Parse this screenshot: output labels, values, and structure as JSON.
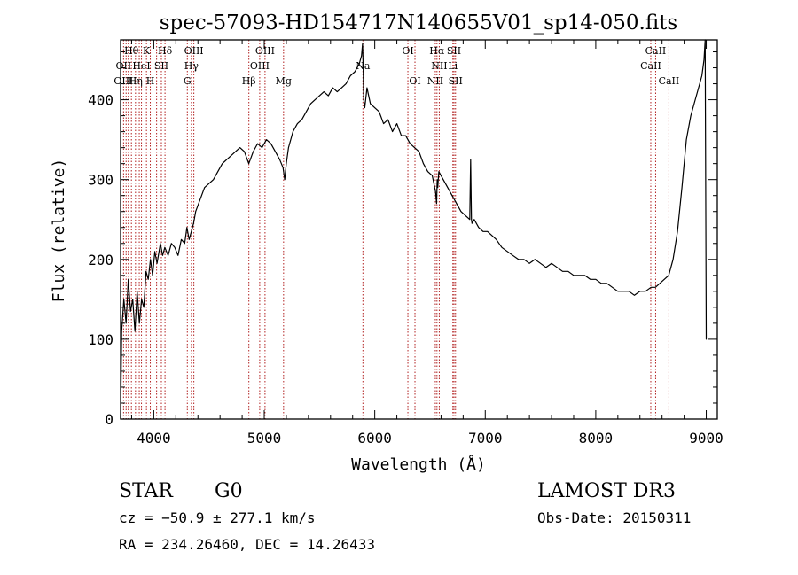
{
  "chart_data": {
    "type": "line",
    "title": "spec-57093-HD154717N140655V01_sp14-050.fits",
    "xlabel": "Wavelength (Å)",
    "ylabel": "Flux (relative)",
    "xlim": [
      3700,
      9100
    ],
    "ylim": [
      0,
      475
    ],
    "x_ticks": [
      4000,
      5000,
      6000,
      7000,
      8000,
      9000
    ],
    "y_ticks": [
      0,
      100,
      200,
      300,
      400
    ],
    "grid": false,
    "legend": "none",
    "series": [
      {
        "color": "#000000",
        "x": [
          3700,
          3710,
          3730,
          3750,
          3770,
          3790,
          3810,
          3830,
          3850,
          3870,
          3890,
          3910,
          3930,
          3950,
          3970,
          3990,
          4010,
          4030,
          4060,
          4080,
          4100,
          4130,
          4160,
          4190,
          4220,
          4250,
          4280,
          4300,
          4320,
          4340,
          4360,
          4380,
          4420,
          4460,
          4500,
          4540,
          4580,
          4620,
          4660,
          4700,
          4740,
          4780,
          4820,
          4860,
          4900,
          4940,
          4980,
          5020,
          5060,
          5100,
          5140,
          5170,
          5185,
          5200,
          5220,
          5260,
          5300,
          5340,
          5380,
          5420,
          5460,
          5500,
          5540,
          5580,
          5620,
          5660,
          5700,
          5740,
          5780,
          5820,
          5860,
          5880,
          5890,
          5895,
          5900,
          5910,
          5930,
          5960,
          6000,
          6040,
          6080,
          6120,
          6160,
          6200,
          6240,
          6280,
          6320,
          6360,
          6400,
          6440,
          6480,
          6520,
          6550,
          6560,
          6565,
          6570,
          6580,
          6620,
          6660,
          6700,
          6740,
          6780,
          6820,
          6860,
          6868,
          6875,
          6880,
          6900,
          6940,
          6980,
          7020,
          7060,
          7100,
          7150,
          7200,
          7250,
          7300,
          7350,
          7400,
          7450,
          7500,
          7550,
          7600,
          7650,
          7700,
          7750,
          7800,
          7850,
          7900,
          7950,
          8000,
          8050,
          8100,
          8150,
          8200,
          8250,
          8300,
          8350,
          8400,
          8450,
          8500,
          8540,
          8580,
          8620,
          8660,
          8700,
          8740,
          8780,
          8820,
          8860,
          8900,
          8940,
          8960,
          8980,
          8990,
          9000,
          9003
        ],
        "values": [
          0,
          110,
          150,
          120,
          175,
          135,
          150,
          110,
          160,
          120,
          150,
          140,
          185,
          175,
          200,
          180,
          210,
          195,
          220,
          205,
          215,
          205,
          220,
          215,
          205,
          225,
          220,
          240,
          225,
          235,
          245,
          260,
          275,
          290,
          295,
          300,
          310,
          320,
          325,
          330,
          335,
          340,
          335,
          320,
          335,
          345,
          340,
          350,
          345,
          335,
          325,
          315,
          300,
          320,
          340,
          360,
          370,
          375,
          385,
          395,
          400,
          405,
          410,
          405,
          415,
          410,
          415,
          420,
          430,
          435,
          445,
          455,
          470,
          440,
          400,
          390,
          415,
          395,
          390,
          385,
          370,
          375,
          360,
          370,
          355,
          355,
          345,
          340,
          335,
          320,
          310,
          305,
          285,
          270,
          300,
          290,
          310,
          300,
          290,
          280,
          270,
          260,
          255,
          250,
          325,
          250,
          245,
          250,
          240,
          235,
          235,
          230,
          225,
          215,
          210,
          205,
          200,
          200,
          195,
          200,
          195,
          190,
          195,
          190,
          185,
          185,
          180,
          180,
          180,
          175,
          175,
          170,
          170,
          165,
          160,
          160,
          160,
          155,
          160,
          160,
          165,
          165,
          170,
          175,
          180,
          200,
          235,
          290,
          350,
          380,
          400,
          420,
          430,
          450,
          475,
          100,
          100
        ]
      }
    ],
    "lines": {
      "x": [
        3727,
        3750,
        3770,
        3798,
        3835,
        3869,
        3889,
        3934,
        3969,
        4026,
        4069,
        4102,
        4304,
        4341,
        4363,
        4861,
        4959,
        5007,
        5175,
        5893,
        6300,
        6364,
        6548,
        6563,
        6584,
        6707,
        6717,
        6731,
        8498,
        8542,
        8662
      ],
      "labels": [
        {
          "text": "Hθ",
          "x": 3798,
          "row": 0
        },
        {
          "text": "K",
          "x": 3934,
          "row": 0
        },
        {
          "text": "Hδ",
          "x": 4102,
          "row": 0
        },
        {
          "text": "OIII",
          "x": 4363,
          "row": 0
        },
        {
          "text": "OIII",
          "x": 5007,
          "row": 0
        },
        {
          "text": "OI",
          "x": 6300,
          "row": 0
        },
        {
          "text": "Hα",
          "x": 6563,
          "row": 0
        },
        {
          "text": "SII",
          "x": 6717,
          "row": 0
        },
        {
          "text": "CaII",
          "x": 8542,
          "row": 0
        },
        {
          "text": "OII",
          "x": 3727,
          "row": 1
        },
        {
          "text": "HeI",
          "x": 3889,
          "row": 1
        },
        {
          "text": "SII",
          "x": 4069,
          "row": 1
        },
        {
          "text": "Hγ",
          "x": 4341,
          "row": 1
        },
        {
          "text": "OIII",
          "x": 4959,
          "row": 1
        },
        {
          "text": "Na",
          "x": 5893,
          "row": 1
        },
        {
          "text": "NII",
          "x": 6584,
          "row": 1
        },
        {
          "text": "Li",
          "x": 6707,
          "row": 1
        },
        {
          "text": "CaII",
          "x": 8498,
          "row": 1
        },
        {
          "text": "OIII",
          "x": 3727,
          "row": 2
        },
        {
          "text": "Hη",
          "x": 3835,
          "row": 2
        },
        {
          "text": "H",
          "x": 3969,
          "row": 2
        },
        {
          "text": "G",
          "x": 4304,
          "row": 2
        },
        {
          "text": "Hβ",
          "x": 4861,
          "row": 2
        },
        {
          "text": "Mg",
          "x": 5175,
          "row": 2
        },
        {
          "text": "OI",
          "x": 6364,
          "row": 2
        },
        {
          "text": "NII",
          "x": 6548,
          "row": 2
        },
        {
          "text": "SII",
          "x": 6731,
          "row": 2
        },
        {
          "text": "CaII",
          "x": 8662,
          "row": 2
        }
      ],
      "color": "#b22222"
    }
  },
  "info": {
    "class": "STAR",
    "subclass": "G0",
    "survey": "LAMOST DR3",
    "cz": "cz = −50.9 ± 277.1 km/s",
    "obs_date": "Obs-Date: 20150311",
    "coords": "RA = 234.26460, DEC =  14.26433"
  }
}
